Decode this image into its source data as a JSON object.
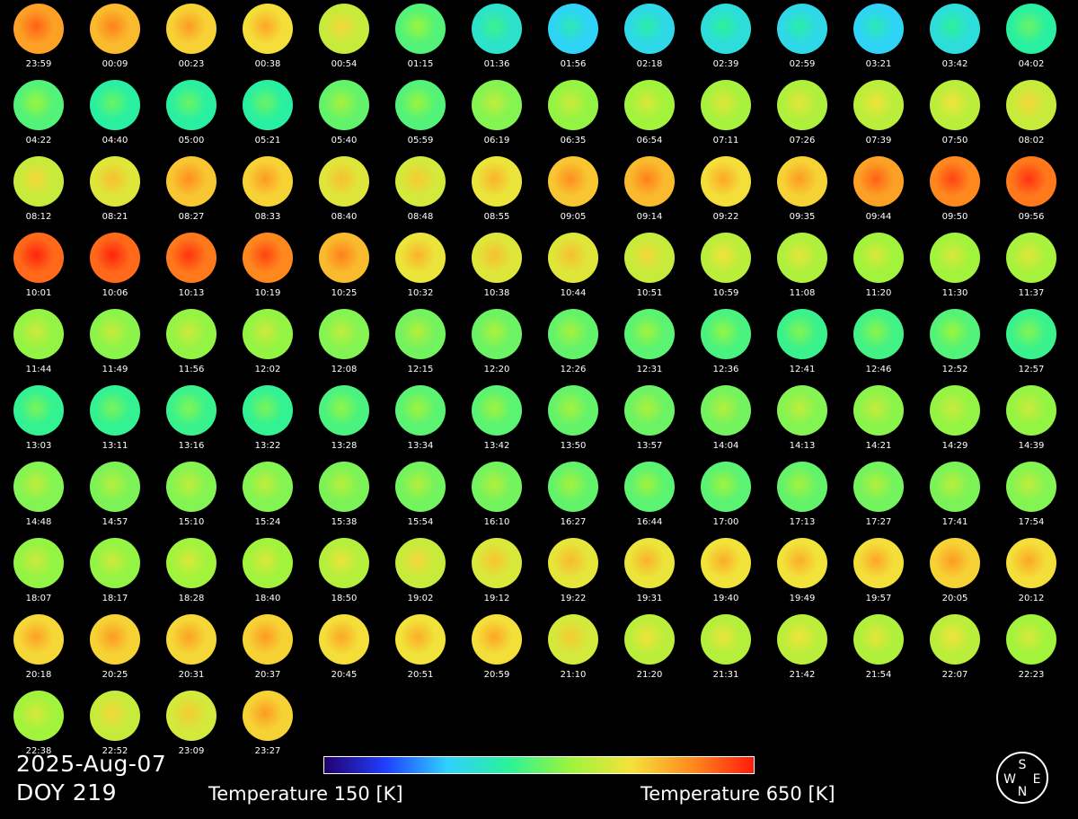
{
  "date": "2025-Aug-07",
  "doy": "DOY 219",
  "colorbar": {
    "min_label": "Temperature 150 [K]",
    "max_label": "Temperature 650 [K]",
    "min_value": 150,
    "max_value": 650,
    "unit": "K",
    "colors": [
      "#22006e",
      "#1f3fff",
      "#2fd0ff",
      "#29f29a",
      "#9cf43c",
      "#f4e23a",
      "#ff8a1e",
      "#ff1c0c"
    ]
  },
  "compass": {
    "north": "N",
    "south": "S",
    "east": "E",
    "west": "W"
  },
  "chart_data": {
    "type": "heatmap",
    "columns_per_row": 14,
    "value_unit": "K",
    "frames": [
      {
        "time": "23:59",
        "temp": 560
      },
      {
        "time": "00:09",
        "temp": 540
      },
      {
        "time": "00:23",
        "temp": 520
      },
      {
        "time": "00:38",
        "temp": 510
      },
      {
        "time": "00:54",
        "temp": 470
      },
      {
        "time": "01:15",
        "temp": 390
      },
      {
        "time": "01:36",
        "temp": 330
      },
      {
        "time": "01:56",
        "temp": 300
      },
      {
        "time": "02:18",
        "temp": 310
      },
      {
        "time": "02:39",
        "temp": 320
      },
      {
        "time": "02:59",
        "temp": 310
      },
      {
        "time": "03:21",
        "temp": 300
      },
      {
        "time": "03:42",
        "temp": 320
      },
      {
        "time": "04:02",
        "temp": 360
      },
      {
        "time": "04:22",
        "temp": 390
      },
      {
        "time": "04:40",
        "temp": 360
      },
      {
        "time": "05:00",
        "temp": 360
      },
      {
        "time": "05:21",
        "temp": 360
      },
      {
        "time": "05:40",
        "temp": 400
      },
      {
        "time": "05:59",
        "temp": 390
      },
      {
        "time": "06:19",
        "temp": 420
      },
      {
        "time": "06:35",
        "temp": 430
      },
      {
        "time": "06:54",
        "temp": 440
      },
      {
        "time": "07:11",
        "temp": 445
      },
      {
        "time": "07:26",
        "temp": 450
      },
      {
        "time": "07:39",
        "temp": 460
      },
      {
        "time": "07:50",
        "temp": 460
      },
      {
        "time": "08:02",
        "temp": 470
      },
      {
        "time": "08:12",
        "temp": 470
      },
      {
        "time": "08:21",
        "temp": 490
      },
      {
        "time": "08:27",
        "temp": 530
      },
      {
        "time": "08:33",
        "temp": 520
      },
      {
        "time": "08:40",
        "temp": 490
      },
      {
        "time": "08:48",
        "temp": 480
      },
      {
        "time": "08:55",
        "temp": 500
      },
      {
        "time": "09:05",
        "temp": 530
      },
      {
        "time": "09:14",
        "temp": 540
      },
      {
        "time": "09:22",
        "temp": 510
      },
      {
        "time": "09:35",
        "temp": 520
      },
      {
        "time": "09:44",
        "temp": 560
      },
      {
        "time": "09:50",
        "temp": 580
      },
      {
        "time": "09:56",
        "temp": 590
      },
      {
        "time": "10:01",
        "temp": 600
      },
      {
        "time": "10:06",
        "temp": 600
      },
      {
        "time": "10:13",
        "temp": 590
      },
      {
        "time": "10:19",
        "temp": 580
      },
      {
        "time": "10:25",
        "temp": 540
      },
      {
        "time": "10:32",
        "temp": 500
      },
      {
        "time": "10:38",
        "temp": 490
      },
      {
        "time": "10:44",
        "temp": 490
      },
      {
        "time": "10:51",
        "temp": 470
      },
      {
        "time": "10:59",
        "temp": 460
      },
      {
        "time": "11:08",
        "temp": 450
      },
      {
        "time": "11:20",
        "temp": 440
      },
      {
        "time": "11:30",
        "temp": 440
      },
      {
        "time": "11:37",
        "temp": 445
      },
      {
        "time": "11:44",
        "temp": 430
      },
      {
        "time": "11:49",
        "temp": 425
      },
      {
        "time": "11:56",
        "temp": 430
      },
      {
        "time": "12:02",
        "temp": 430
      },
      {
        "time": "12:08",
        "temp": 420
      },
      {
        "time": "12:15",
        "temp": 410
      },
      {
        "time": "12:20",
        "temp": 405
      },
      {
        "time": "12:26",
        "temp": 400
      },
      {
        "time": "12:31",
        "temp": 395
      },
      {
        "time": "12:36",
        "temp": 385
      },
      {
        "time": "12:41",
        "temp": 375
      },
      {
        "time": "12:46",
        "temp": 380
      },
      {
        "time": "12:52",
        "temp": 390
      },
      {
        "time": "12:57",
        "temp": 375
      },
      {
        "time": "13:03",
        "temp": 370
      },
      {
        "time": "13:11",
        "temp": 370
      },
      {
        "time": "13:16",
        "temp": 375
      },
      {
        "time": "13:22",
        "temp": 370
      },
      {
        "time": "13:28",
        "temp": 385
      },
      {
        "time": "13:34",
        "temp": 395
      },
      {
        "time": "13:42",
        "temp": 395
      },
      {
        "time": "13:50",
        "temp": 400
      },
      {
        "time": "13:57",
        "temp": 405
      },
      {
        "time": "14:04",
        "temp": 410
      },
      {
        "time": "14:13",
        "temp": 420
      },
      {
        "time": "14:21",
        "temp": 425
      },
      {
        "time": "14:29",
        "temp": 430
      },
      {
        "time": "14:39",
        "temp": 430
      },
      {
        "time": "14:48",
        "temp": 420
      },
      {
        "time": "14:57",
        "temp": 415
      },
      {
        "time": "15:10",
        "temp": 420
      },
      {
        "time": "15:24",
        "temp": 420
      },
      {
        "time": "15:38",
        "temp": 415
      },
      {
        "time": "15:54",
        "temp": 410
      },
      {
        "time": "16:10",
        "temp": 410
      },
      {
        "time": "16:27",
        "temp": 400
      },
      {
        "time": "16:44",
        "temp": 395
      },
      {
        "time": "17:00",
        "temp": 395
      },
      {
        "time": "17:13",
        "temp": 400
      },
      {
        "time": "17:27",
        "temp": 410
      },
      {
        "time": "17:41",
        "temp": 415
      },
      {
        "time": "17:54",
        "temp": 420
      },
      {
        "time": "18:07",
        "temp": 430
      },
      {
        "time": "18:17",
        "temp": 430
      },
      {
        "time": "18:28",
        "temp": 440
      },
      {
        "time": "18:40",
        "temp": 440
      },
      {
        "time": "18:50",
        "temp": 455
      },
      {
        "time": "19:02",
        "temp": 470
      },
      {
        "time": "19:12",
        "temp": 485
      },
      {
        "time": "19:22",
        "temp": 495
      },
      {
        "time": "19:31",
        "temp": 500
      },
      {
        "time": "19:40",
        "temp": 505
      },
      {
        "time": "19:49",
        "temp": 505
      },
      {
        "time": "19:57",
        "temp": 510
      },
      {
        "time": "20:05",
        "temp": 520
      },
      {
        "time": "20:12",
        "temp": 510
      },
      {
        "time": "20:18",
        "temp": 515
      },
      {
        "time": "20:25",
        "temp": 520
      },
      {
        "time": "20:31",
        "temp": 515
      },
      {
        "time": "20:37",
        "temp": 520
      },
      {
        "time": "20:45",
        "temp": 510
      },
      {
        "time": "20:51",
        "temp": 505
      },
      {
        "time": "20:59",
        "temp": 510
      },
      {
        "time": "21:10",
        "temp": 480
      },
      {
        "time": "21:20",
        "temp": 460
      },
      {
        "time": "21:31",
        "temp": 455
      },
      {
        "time": "21:42",
        "temp": 460
      },
      {
        "time": "21:54",
        "temp": 450
      },
      {
        "time": "22:07",
        "temp": 460
      },
      {
        "time": "22:23",
        "temp": 440
      },
      {
        "time": "22:38",
        "temp": 440
      },
      {
        "time": "22:52",
        "temp": 470
      },
      {
        "time": "23:09",
        "temp": 480
      },
      {
        "time": "23:27",
        "temp": 520
      }
    ]
  }
}
